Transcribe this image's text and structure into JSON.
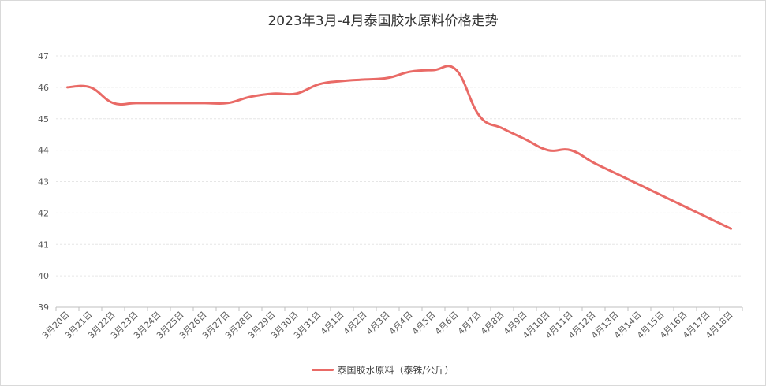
{
  "chart_data": {
    "type": "line",
    "title": "2023年3月-4月泰国胶水原料价格走势",
    "categories": [
      "3月20日",
      "3月21日",
      "3月22日",
      "3月23日",
      "3月24日",
      "3月25日",
      "3月26日",
      "3月27日",
      "3月28日",
      "3月29日",
      "3月30日",
      "3月31日",
      "4月1日",
      "4月2日",
      "4月3日",
      "4月4日",
      "4月5日",
      "4月6日",
      "4月7日",
      "4月8日",
      "4月9日",
      "4月10日",
      "4月11日",
      "4月12日",
      "4月13日",
      "4月14日",
      "4月15日",
      "4月16日",
      "4月17日",
      "4月18日"
    ],
    "series": [
      {
        "name": "泰国胶水原料（泰铢/公斤）",
        "color": "#e96a66",
        "values": [
          46.0,
          46.0,
          45.5,
          45.5,
          45.5,
          45.5,
          45.5,
          45.5,
          45.7,
          45.8,
          45.8,
          46.1,
          46.2,
          46.25,
          46.3,
          46.5,
          46.55,
          46.55,
          45.1,
          44.7,
          44.35,
          44.0,
          44.0,
          43.6,
          43.25,
          42.9,
          42.55,
          42.2,
          41.85,
          41.5
        ]
      }
    ],
    "ylim": [
      39,
      47
    ],
    "yticks": [
      39,
      40,
      41,
      42,
      43,
      44,
      45,
      46,
      47
    ],
    "grid": "horizontal-dashed",
    "legend_position": "bottom"
  }
}
